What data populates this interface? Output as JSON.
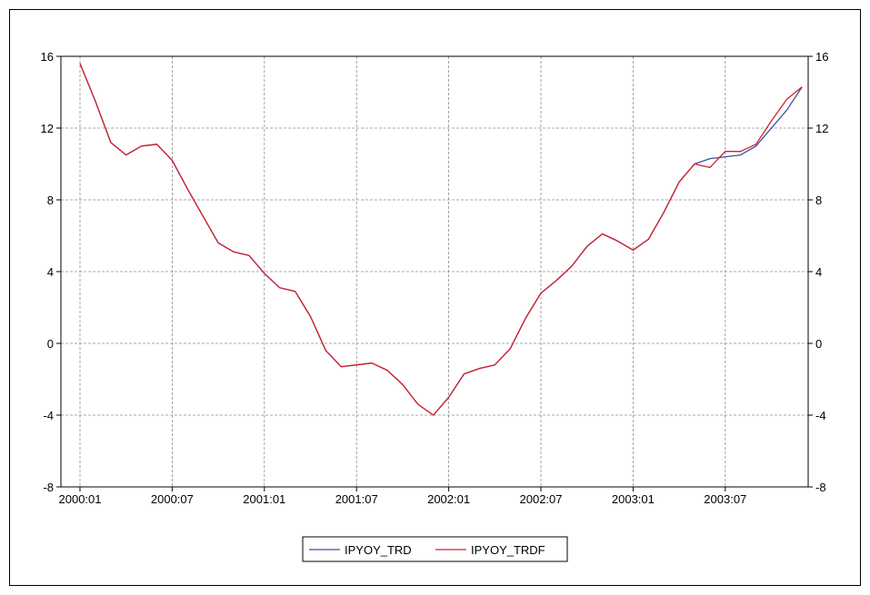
{
  "chart_data": {
    "type": "line",
    "title": "",
    "xlabel": "",
    "ylabel": "",
    "ylim": [
      -8,
      16
    ],
    "y_ticks": [
      -8,
      -4,
      0,
      4,
      8,
      12,
      16
    ],
    "x_ticks": [
      {
        "index": 0,
        "label": "2000:01"
      },
      {
        "index": 6,
        "label": "2000:07"
      },
      {
        "index": 12,
        "label": "2001:01"
      },
      {
        "index": 18,
        "label": "2001:07"
      },
      {
        "index": 24,
        "label": "2002:01"
      },
      {
        "index": 30,
        "label": "2002:07"
      },
      {
        "index": 36,
        "label": "2003:01"
      },
      {
        "index": 42,
        "label": "2003:07"
      }
    ],
    "x": [
      "2000:01",
      "2000:02",
      "2000:03",
      "2000:04",
      "2000:05",
      "2000:06",
      "2000:07",
      "2000:08",
      "2000:09",
      "2000:10",
      "2000:11",
      "2000:12",
      "2001:01",
      "2001:02",
      "2001:03",
      "2001:04",
      "2001:05",
      "2001:06",
      "2001:07",
      "2001:08",
      "2001:09",
      "2001:10",
      "2001:11",
      "2001:12",
      "2002:01",
      "2002:02",
      "2002:03",
      "2002:04",
      "2002:05",
      "2002:06",
      "2002:07",
      "2002:08",
      "2002:09",
      "2002:10",
      "2002:11",
      "2002:12",
      "2003:01",
      "2003:02",
      "2003:03",
      "2003:04",
      "2003:05",
      "2003:06",
      "2003:07",
      "2003:08",
      "2003:09",
      "2003:10",
      "2003:11",
      "2003:12"
    ],
    "grid": true,
    "legend_position": "bottom-center",
    "series": [
      {
        "name": "IPYOY_TRD",
        "color": "#3b4fa0",
        "values": [
          15.6,
          13.5,
          11.2,
          10.5,
          11.0,
          11.1,
          10.2,
          8.6,
          7.1,
          5.6,
          5.1,
          4.9,
          3.9,
          3.1,
          2.9,
          1.5,
          -0.4,
          -1.3,
          -1.2,
          -1.1,
          -1.5,
          -2.3,
          -3.4,
          -4.0,
          -3.0,
          -1.7,
          -1.4,
          -1.2,
          -0.3,
          1.4,
          2.8,
          3.5,
          4.3,
          5.4,
          6.1,
          5.7,
          5.2,
          5.8,
          7.3,
          9.0,
          10.0,
          10.3,
          10.4,
          10.5,
          11.0,
          12.0,
          13.0,
          14.3
        ]
      },
      {
        "name": "IPYOY_TRDF",
        "color": "#d0202e",
        "values": [
          15.6,
          13.5,
          11.2,
          10.5,
          11.0,
          11.1,
          10.2,
          8.6,
          7.1,
          5.6,
          5.1,
          4.9,
          3.9,
          3.1,
          2.9,
          1.5,
          -0.4,
          -1.3,
          -1.2,
          -1.1,
          -1.5,
          -2.3,
          -3.4,
          -4.0,
          -3.0,
          -1.7,
          -1.4,
          -1.2,
          -0.3,
          1.4,
          2.8,
          3.5,
          4.3,
          5.4,
          6.1,
          5.7,
          5.2,
          5.8,
          7.3,
          9.0,
          10.0,
          9.8,
          10.7,
          10.7,
          11.1,
          12.4,
          13.6,
          14.3
        ]
      }
    ]
  }
}
